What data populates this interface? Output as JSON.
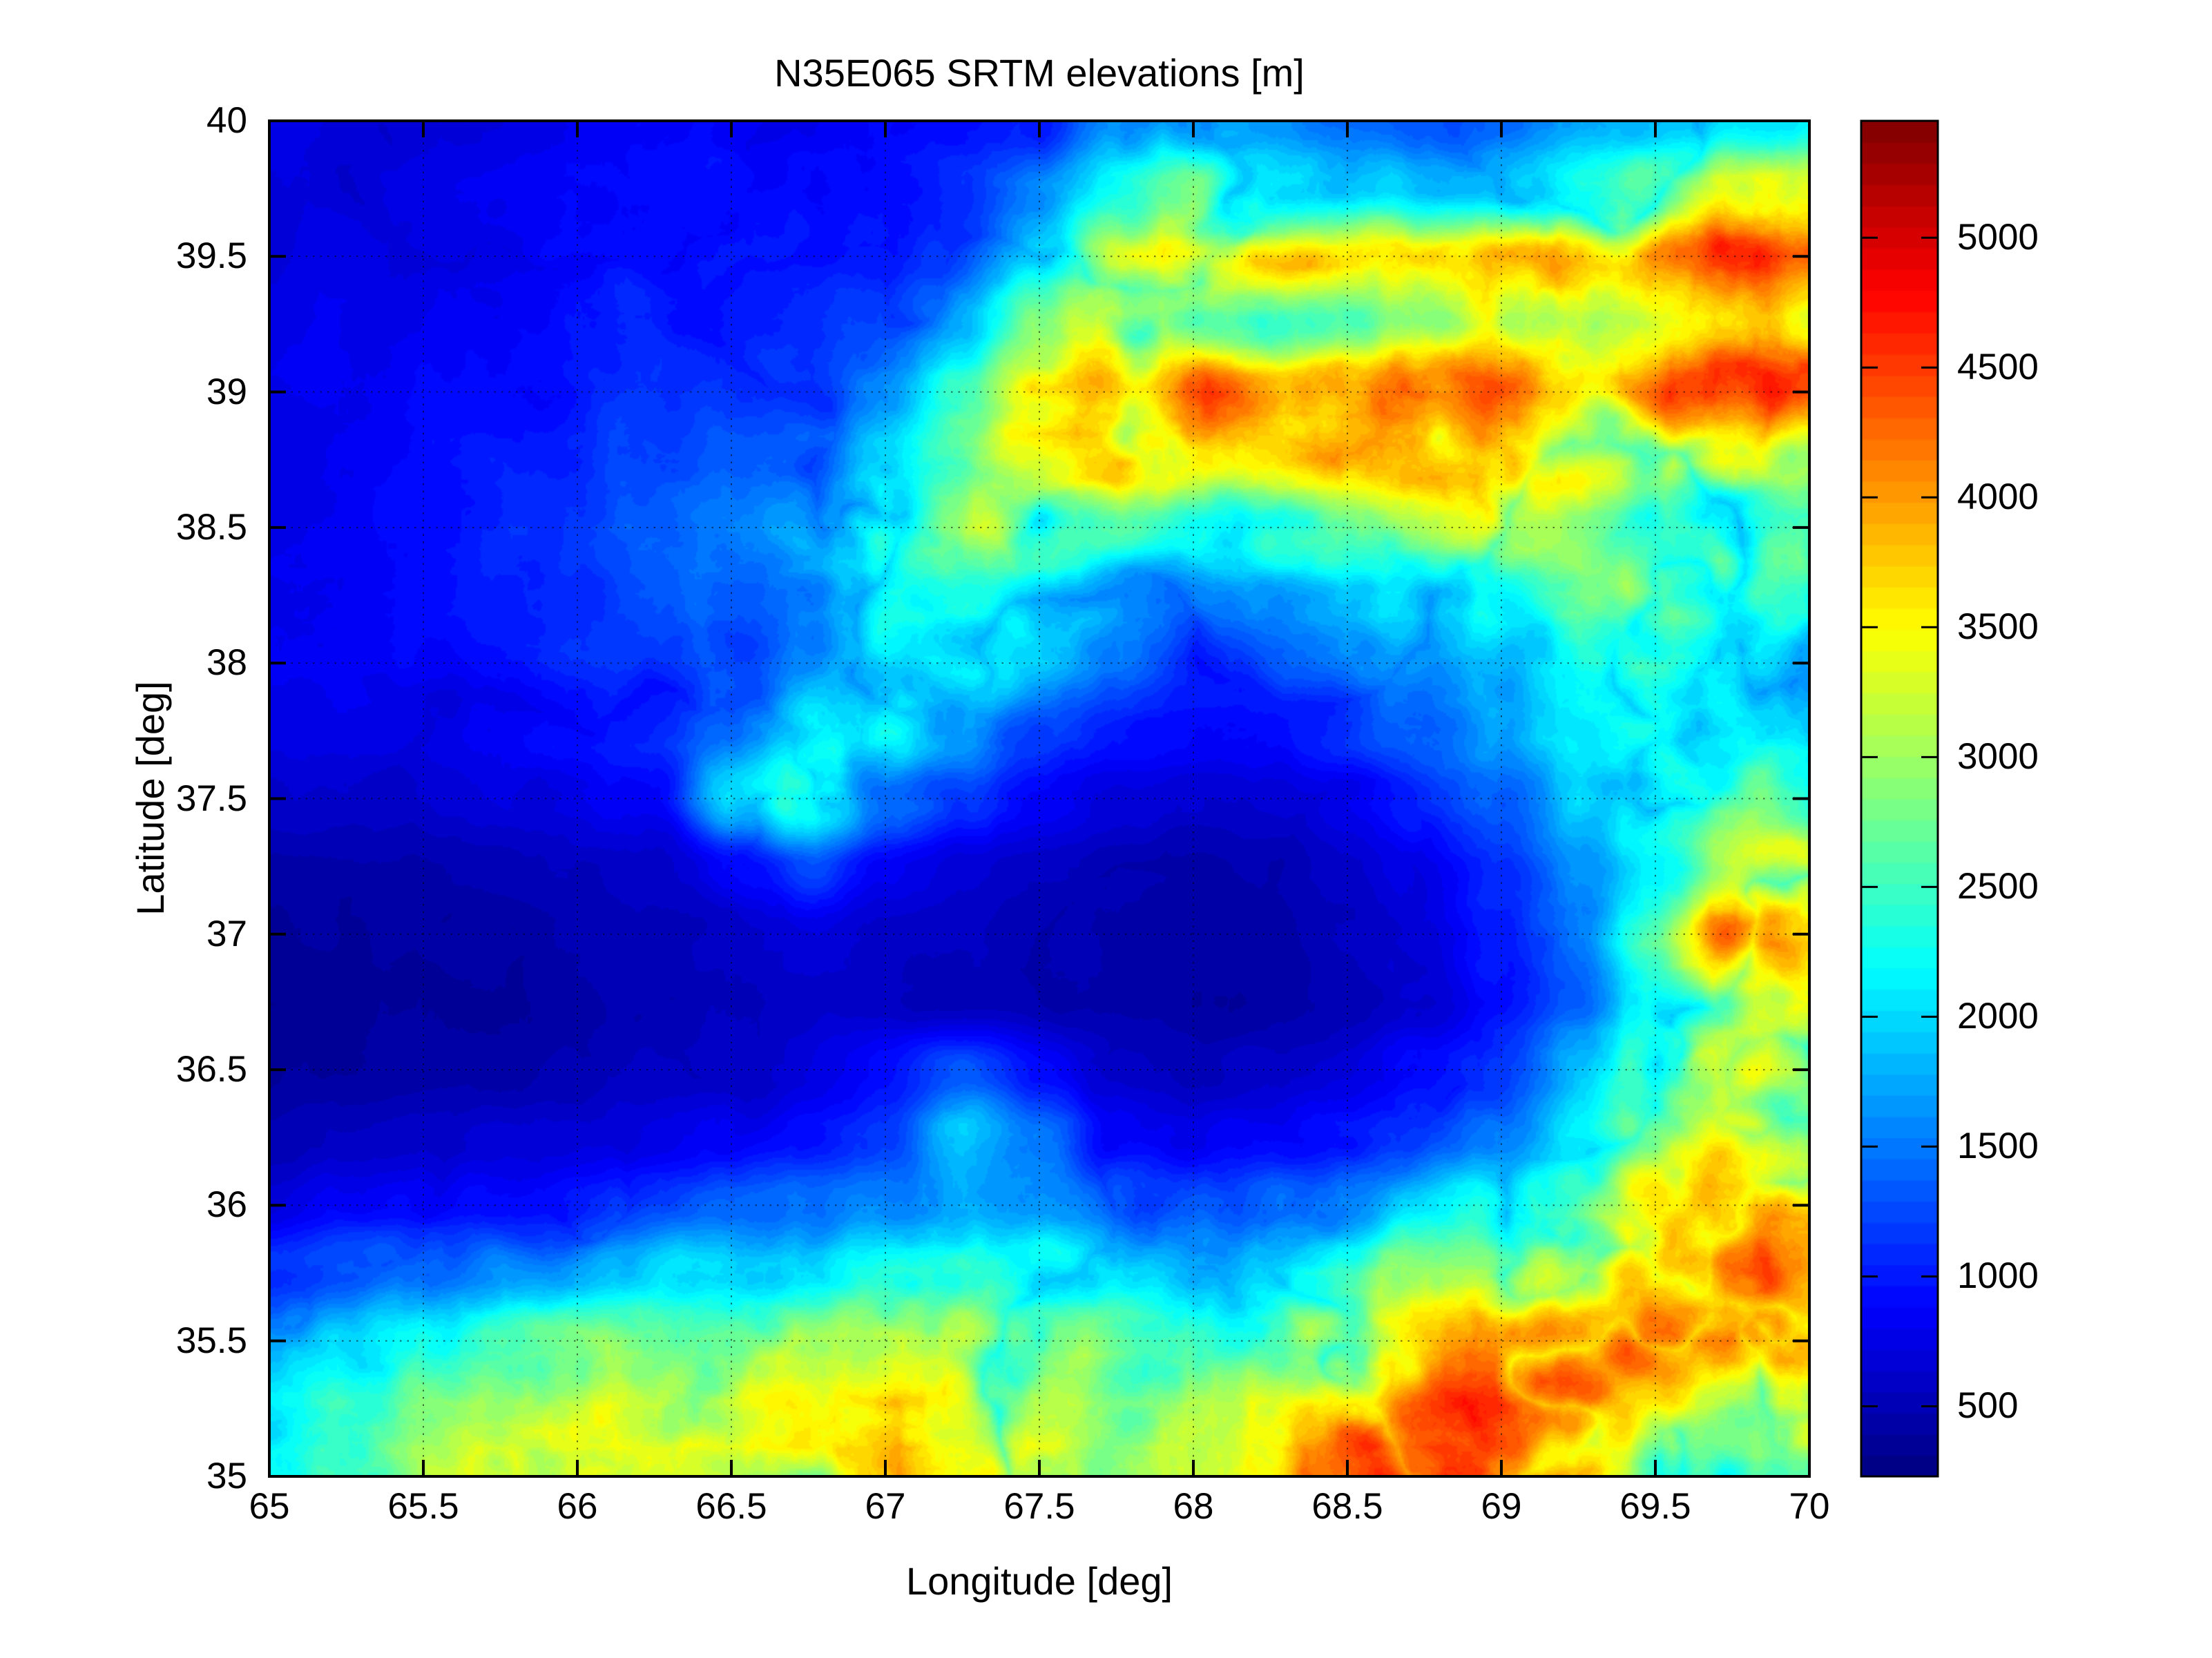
{
  "figure": {
    "background": "#ffffff",
    "axis_color": "#000000"
  },
  "chart_data": {
    "type": "heatmap",
    "title": "N35E065 SRTM elevations [m]",
    "xlabel": "Longitude [deg]",
    "ylabel": "Latitude [deg]",
    "x_range": [
      65,
      70
    ],
    "y_range": [
      35,
      40
    ],
    "x_ticks": [
      65,
      65.5,
      66,
      66.5,
      67,
      67.5,
      68,
      68.5,
      69,
      69.5,
      70
    ],
    "x_tick_labels": [
      "65",
      "65.5",
      "66",
      "66.5",
      "67",
      "67.5",
      "68",
      "68.5",
      "69",
      "69.5",
      "70"
    ],
    "y_ticks": [
      35,
      35.5,
      36,
      36.5,
      37,
      37.5,
      38,
      38.5,
      39,
      39.5,
      40
    ],
    "y_tick_labels": [
      "35",
      "35.5",
      "36",
      "36.5",
      "37",
      "37.5",
      "38",
      "38.5",
      "39",
      "39.5",
      "40"
    ],
    "grid": true,
    "grid_step_deg": 0.5,
    "colormap": "jet",
    "colormap_steps": 64,
    "color_range_m": [
      230,
      5450
    ],
    "colorbar_ticks_m": [
      500,
      1000,
      1500,
      2000,
      2500,
      3000,
      3500,
      4000,
      4500,
      5000
    ],
    "colorbar_tick_labels": [
      "500",
      "1000",
      "1500",
      "2000",
      "2500",
      "3000",
      "3500",
      "4000",
      "4500",
      "5000"
    ],
    "elevation_grid": {
      "description": "Approximate SRTM elevations in meters sampled every 0.25 deg; rows north to south (lat 40 to 35), columns west to east (lon 65 to 70).",
      "lon_start": 65,
      "lon_step": 0.25,
      "lat_start": 40,
      "lat_step": -0.25,
      "values_m": [
        [
          700,
          700,
          720,
          750,
          800,
          850,
          850,
          820,
          850,
          950,
          1100,
          1600,
          1900,
          1600,
          1300,
          1200,
          1300,
          1500,
          1700,
          1900,
          2100
        ],
        [
          700,
          710,
          740,
          800,
          900,
          1000,
          950,
          900,
          950,
          1100,
          1500,
          2300,
          2600,
          2200,
          1900,
          1700,
          1900,
          2200,
          2600,
          3000,
          3200
        ],
        [
          720,
          730,
          760,
          820,
          950,
          1050,
          1000,
          950,
          1050,
          1300,
          2000,
          3000,
          3400,
          3600,
          3400,
          3200,
          3500,
          3800,
          4200,
          4500,
          4300
        ],
        [
          730,
          750,
          800,
          870,
          1000,
          1100,
          1050,
          1000,
          1200,
          1700,
          2600,
          3300,
          2700,
          2400,
          2600,
          2800,
          3000,
          3200,
          3600,
          3900,
          3700
        ],
        [
          750,
          780,
          830,
          900,
          1050,
          1150,
          1100,
          1100,
          1500,
          2300,
          3200,
          3900,
          4300,
          3900,
          3700,
          3900,
          4100,
          3700,
          4200,
          4600,
          4400
        ],
        [
          760,
          800,
          850,
          950,
          1100,
          1250,
          1250,
          1400,
          2000,
          2800,
          3400,
          3800,
          3500,
          3300,
          3500,
          3600,
          3800,
          3400,
          3000,
          3400,
          3200
        ],
        [
          770,
          800,
          870,
          980,
          1150,
          1300,
          1400,
          1800,
          2600,
          3300,
          2800,
          2400,
          2200,
          2400,
          2600,
          2800,
          3000,
          2600,
          2200,
          2600,
          2800
        ],
        [
          760,
          790,
          850,
          950,
          1100,
          1250,
          1350,
          1600,
          2200,
          2400,
          2000,
          1700,
          1500,
          1600,
          1800,
          2000,
          2200,
          2600,
          3000,
          2800,
          2600
        ],
        [
          750,
          780,
          830,
          920,
          1050,
          1150,
          1250,
          1500,
          2000,
          2200,
          1800,
          1400,
          1100,
          1200,
          1400,
          1600,
          1800,
          2200,
          2600,
          2400,
          2200
        ],
        [
          700,
          720,
          760,
          850,
          950,
          1050,
          1400,
          2200,
          2400,
          1800,
          1300,
          1000,
          900,
          950,
          1100,
          1300,
          1600,
          2000,
          2400,
          2200,
          2000
        ],
        [
          600,
          620,
          650,
          700,
          800,
          900,
          2000,
          2600,
          1500,
          1100,
          900,
          700,
          650,
          700,
          800,
          1000,
          1300,
          1800,
          2200,
          2600,
          2400
        ],
        [
          450,
          460,
          480,
          520,
          580,
          650,
          900,
          1200,
          800,
          650,
          550,
          500,
          480,
          500,
          600,
          750,
          1000,
          1500,
          2000,
          2800,
          3200
        ],
        [
          400,
          410,
          430,
          460,
          500,
          550,
          600,
          700,
          600,
          550,
          480,
          450,
          430,
          450,
          550,
          700,
          950,
          1400,
          2400,
          4200,
          3800
        ],
        [
          380,
          390,
          400,
          430,
          460,
          500,
          550,
          600,
          560,
          520,
          470,
          440,
          420,
          440,
          520,
          650,
          900,
          1300,
          2200,
          3600,
          3200
        ],
        [
          400,
          420,
          450,
          480,
          520,
          560,
          620,
          700,
          900,
          1200,
          900,
          600,
          550,
          600,
          700,
          900,
          1200,
          1800,
          2600,
          3800,
          3400
        ],
        [
          500,
          550,
          600,
          650,
          700,
          750,
          800,
          900,
          1100,
          1800,
          1400,
          900,
          800,
          900,
          1000,
          1200,
          1500,
          2000,
          2800,
          3800,
          3400
        ],
        [
          700,
          800,
          900,
          1000,
          1100,
          1200,
          1300,
          1400,
          1500,
          1700,
          1600,
          1400,
          1300,
          1500,
          1700,
          2000,
          2200,
          2600,
          3400,
          4000,
          3600
        ],
        [
          1200,
          1400,
          1600,
          1700,
          1800,
          1900,
          2000,
          2100,
          2200,
          2300,
          2200,
          2000,
          1900,
          2200,
          2600,
          3000,
          3200,
          3400,
          4200,
          4400,
          4000
        ],
        [
          1800,
          2000,
          2200,
          2400,
          2600,
          2700,
          2800,
          2900,
          3000,
          3100,
          2900,
          2600,
          2400,
          2800,
          3200,
          3600,
          3800,
          4000,
          4400,
          4200,
          4400
        ],
        [
          2200,
          2400,
          2600,
          2800,
          3000,
          3200,
          3300,
          3200,
          3300,
          3400,
          3200,
          2800,
          3000,
          3400,
          3800,
          4200,
          4400,
          4200,
          3600,
          3000,
          3500
        ],
        [
          2400,
          2600,
          2800,
          3000,
          3200,
          3400,
          3500,
          3400,
          3500,
          3600,
          3400,
          3000,
          3200,
          3600,
          4200,
          4600,
          4400,
          4000,
          2800,
          2500,
          2500
        ]
      ]
    }
  }
}
